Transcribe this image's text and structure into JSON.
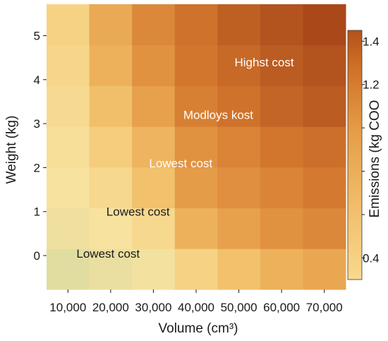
{
  "chart_data": {
    "type": "heatmap",
    "x": [
      10000,
      20000,
      30000,
      40000,
      50000,
      60000,
      70000
    ],
    "x_tick_labels": [
      "10,000",
      "20,000",
      "30,000",
      "40,000",
      "50,000",
      "60,000",
      "70,000"
    ],
    "y_rows": [
      -0.75,
      0,
      1,
      2,
      3,
      4,
      5
    ],
    "y_tick_labels": [
      "0",
      "1",
      "2",
      "3",
      "4",
      "5"
    ],
    "y_ticks": [
      0,
      1,
      2,
      3,
      4,
      5
    ],
    "xlabel": "Volume (cm³)",
    "ylabel": "Weight (kg)",
    "z": [
      [
        0.2,
        0.24,
        0.28,
        0.45,
        0.6,
        0.72,
        0.8
      ],
      [
        0.26,
        0.3,
        0.4,
        0.72,
        0.84,
        0.95,
        1.02
      ],
      [
        0.3,
        0.4,
        0.6,
        0.88,
        0.97,
        1.05,
        1.12
      ],
      [
        0.34,
        0.5,
        0.7,
        0.95,
        1.05,
        1.15,
        1.2
      ],
      [
        0.38,
        0.62,
        0.85,
        1.08,
        1.18,
        1.28,
        1.35
      ],
      [
        0.42,
        0.72,
        0.95,
        1.15,
        1.25,
        1.35,
        1.42
      ],
      [
        0.45,
        0.78,
        1.02,
        1.18,
        1.32,
        1.42,
        1.5
      ]
    ],
    "colorbar": {
      "label": "Emissions (kg COO",
      "ticks": [
        0.4,
        0.6,
        0.8,
        1.0,
        1.2,
        1.4
      ],
      "tick_labels": [
        "0.4",
        "",
        "",
        "",
        "1.2",
        "1.4"
      ],
      "range": [
        0.3,
        1.45
      ]
    },
    "annotations": [
      {
        "text": "Highst cost",
        "x": 49000,
        "y": 4.4,
        "color": "#ffffff"
      },
      {
        "text": "Modloys kost",
        "x": 37000,
        "y": 3.2,
        "color": "#ffffff"
      },
      {
        "text": "Lowest cost",
        "x": 29000,
        "y": 2.1,
        "color": "#ffffff"
      },
      {
        "text": "Lowest cost",
        "x": 19000,
        "y": 1.0,
        "color": "#1a1a1a"
      },
      {
        "text": "Lowest cost",
        "x": 12000,
        "y": 0.05,
        "color": "#1a1a1a"
      }
    ]
  }
}
